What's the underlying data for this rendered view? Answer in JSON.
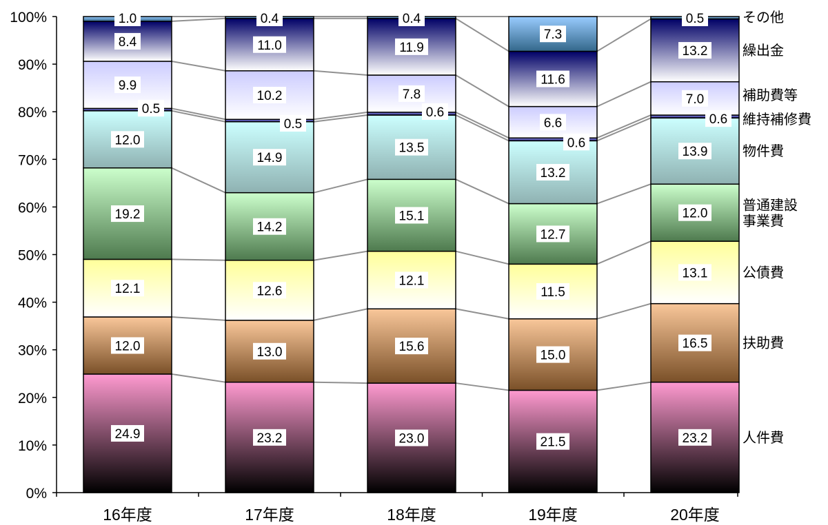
{
  "chart_data": {
    "type": "bar",
    "stacked": true,
    "percent": true,
    "categories": [
      "16年度",
      "17年度",
      "18年度",
      "19年度",
      "20年度"
    ],
    "ylim": [
      0,
      100
    ],
    "ytick_labels": [
      "0%",
      "10%",
      "20%",
      "30%",
      "40%",
      "50%",
      "60%",
      "70%",
      "80%",
      "90%",
      "100%"
    ],
    "grid": false,
    "connector_lines": true,
    "series": [
      {
        "name": "人件費",
        "values": [
          24.9,
          23.2,
          23.0,
          21.5,
          23.2
        ],
        "colors": [
          "#ff9ad0",
          "#000000"
        ]
      },
      {
        "name": "扶助費",
        "values": [
          12.0,
          13.0,
          15.6,
          15.0,
          16.5
        ],
        "colors": [
          "#f9c79a",
          "#7a5028"
        ]
      },
      {
        "name": "公債費",
        "values": [
          12.1,
          12.6,
          12.1,
          11.5,
          13.1
        ],
        "colors": [
          "#ffff9a",
          "#ffffff"
        ]
      },
      {
        "name": "普通建設\n事業費",
        "values": [
          19.2,
          14.2,
          15.1,
          12.7,
          12.0
        ],
        "colors": [
          "#ccffcc",
          "#4e7a4e"
        ]
      },
      {
        "name": "物件費",
        "values": [
          12.0,
          14.9,
          13.5,
          13.2,
          13.9
        ],
        "colors": [
          "#ccffff",
          "#8fb2b2"
        ]
      },
      {
        "name": "維持補修費",
        "values": [
          0.5,
          0.5,
          0.6,
          0.6,
          0.6
        ],
        "colors": [
          "#9999ff",
          "#1a1a66"
        ]
      },
      {
        "name": "補助費等",
        "values": [
          9.9,
          10.2,
          7.8,
          6.6,
          7.0
        ],
        "colors": [
          "#ccccff",
          "#ffffff"
        ]
      },
      {
        "name": "繰出金",
        "values": [
          8.4,
          11.0,
          11.9,
          11.6,
          13.2
        ],
        "colors": [
          "#000066",
          "#ffffff"
        ]
      },
      {
        "name": "その他",
        "values": [
          1.0,
          0.4,
          0.4,
          7.3,
          0.5
        ],
        "colors": [
          "#99ccff",
          "#33678a"
        ]
      }
    ],
    "data_labels": [
      [
        "24.9",
        "23.2",
        "23.0",
        "21.5",
        "23.2"
      ],
      [
        "12.0",
        "13.0",
        "15.6",
        "15.0",
        "16.5"
      ],
      [
        "12.1",
        "12.6",
        "12.1",
        "11.5",
        "13.1"
      ],
      [
        "19.2",
        "14.2",
        "15.1",
        "12.7",
        "12.0"
      ],
      [
        "12.0",
        "14.9",
        "13.5",
        "13.2",
        "13.9"
      ],
      [
        "0.5",
        "0.5",
        "0.6",
        "0.6",
        "0.6"
      ],
      [
        "9.9",
        "10.2",
        "7.8",
        "6.6",
        "7.0"
      ],
      [
        "8.4",
        "11.0",
        "11.9",
        "11.6",
        "13.2"
      ],
      [
        "1.0",
        "0.4",
        "0.4",
        "7.3",
        "0.5"
      ]
    ]
  }
}
